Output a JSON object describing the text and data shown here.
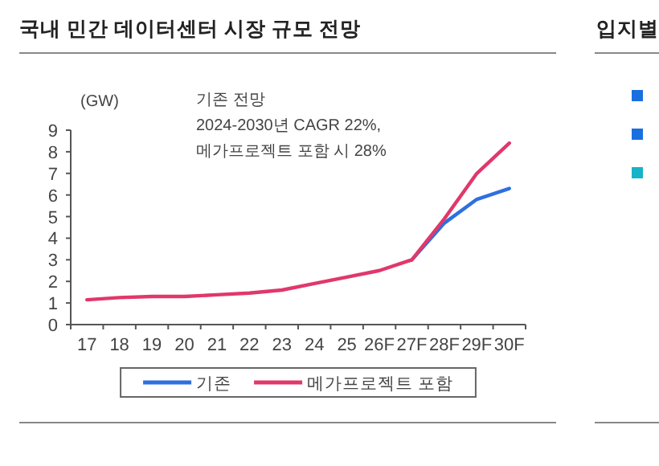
{
  "chart_data": [
    {
      "type": "line",
      "title": "국내 민간 데이터센터 시장 규모 전망",
      "ylabel": "(GW)",
      "annotations": [
        "기존 전망",
        "2024-2030년 CAGR 22%,",
        "메가프로젝트 포함 시 28%"
      ],
      "categories": [
        "17",
        "18",
        "19",
        "20",
        "21",
        "22",
        "23",
        "24",
        "25",
        "26F",
        "27F",
        "28F",
        "29F",
        "30F"
      ],
      "series": [
        {
          "name": "기존",
          "color": "#2f6fdf",
          "values": [
            null,
            null,
            null,
            null,
            null,
            null,
            null,
            null,
            null,
            null,
            3.0,
            4.7,
            5.8,
            6.3
          ]
        },
        {
          "name": "메가프로젝트 포함",
          "color": "#e0386b",
          "values": [
            1.15,
            1.25,
            1.3,
            1.3,
            1.38,
            1.46,
            1.6,
            1.9,
            2.2,
            2.5,
            3.0,
            4.9,
            7.0,
            8.4
          ]
        }
      ],
      "ylim": [
        0,
        9
      ],
      "yticks": [
        0,
        1,
        2,
        3,
        4,
        5,
        6,
        7,
        8,
        9
      ],
      "grid": false,
      "legend": "bottom",
      "marker": "none",
      "line_style": "solid"
    },
    {
      "type": "other",
      "title": "입지별"
    }
  ]
}
